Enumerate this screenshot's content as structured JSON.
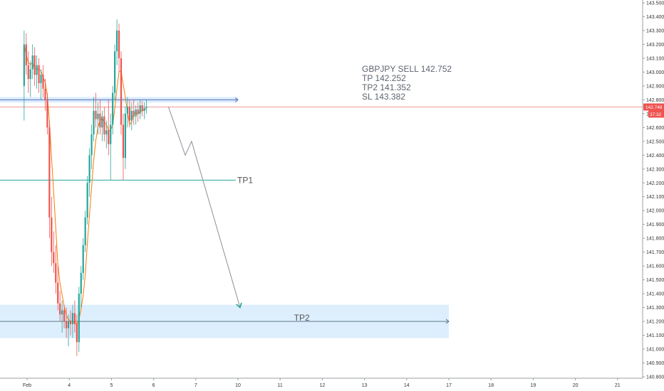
{
  "chart_data": {
    "type": "candlestick",
    "symbol_note": [
      "GBPJPY SELL 142.752",
      "TP 142.252",
      "TP2 141.352",
      "SL 143.382"
    ],
    "y_axis": {
      "min": 140.8,
      "max": 143.5,
      "ticks": [
        "143.500",
        "143.400",
        "143.300",
        "143.200",
        "143.100",
        "143.000",
        "142.900",
        "142.800",
        "142.700",
        "142.600",
        "142.500",
        "142.400",
        "142.300",
        "142.200",
        "142.100",
        "142.000",
        "141.900",
        "141.800",
        "141.700",
        "141.600",
        "141.500",
        "141.400",
        "141.300",
        "141.200",
        "141.100",
        "141.000",
        "140.900",
        "140.800"
      ]
    },
    "x_axis": {
      "ticks": [
        {
          "label": "Feb",
          "day": 3
        },
        {
          "label": "4",
          "day": 4
        },
        {
          "label": "5",
          "day": 5
        },
        {
          "label": "6",
          "day": 6
        },
        {
          "label": "7",
          "day": 7
        },
        {
          "label": "10",
          "day": 8
        },
        {
          "label": "11",
          "day": 9
        },
        {
          "label": "12",
          "day": 10
        },
        {
          "label": "13",
          "day": 11
        },
        {
          "label": "14",
          "day": 12
        },
        {
          "label": "17",
          "day": 13
        },
        {
          "label": "18",
          "day": 14
        },
        {
          "label": "19",
          "day": 15
        },
        {
          "label": "20",
          "day": 16
        },
        {
          "label": "21",
          "day": 17
        }
      ]
    },
    "current_price": {
      "value": "142.748",
      "timer": "37:32"
    },
    "colors": {
      "up": "#26a69a",
      "down": "#ef5350",
      "ma": "#f57c00",
      "resistance_band": "#bbdefb",
      "tp2_band": "#bbdefb",
      "projection": "#8a8f96",
      "level": "#26a69a",
      "price_line": "#ef9a9a"
    },
    "levels": {
      "resistance": {
        "value": 142.8,
        "band": [
          142.78,
          142.82
        ],
        "end_day": 8.0
      },
      "tp1": {
        "value": 142.22,
        "label": "TP1",
        "end_day": 7.95
      },
      "tp2": {
        "value": 141.2,
        "label": "TP2",
        "band": [
          141.08,
          141.32
        ],
        "end_day": 13.0
      }
    },
    "projection_path": [
      {
        "day": 6.35,
        "price": 142.75
      },
      {
        "day": 6.75,
        "price": 142.4
      },
      {
        "day": 6.9,
        "price": 142.5
      },
      {
        "day": 8.05,
        "price": 141.3
      }
    ],
    "candles": [
      {
        "day": 2.93,
        "o": 142.9,
        "h": 143.3,
        "l": 142.65,
        "c": 143.2
      },
      {
        "day": 2.98,
        "o": 143.2,
        "h": 143.28,
        "l": 142.98,
        "c": 143.05
      },
      {
        "day": 3.03,
        "o": 143.05,
        "h": 143.15,
        "l": 142.85,
        "c": 142.95
      },
      {
        "day": 3.08,
        "o": 142.95,
        "h": 143.08,
        "l": 142.82,
        "c": 143.02
      },
      {
        "day": 3.13,
        "o": 143.02,
        "h": 143.2,
        "l": 142.95,
        "c": 143.12
      },
      {
        "day": 3.18,
        "o": 143.12,
        "h": 143.18,
        "l": 142.9,
        "c": 142.98
      },
      {
        "day": 3.23,
        "o": 142.98,
        "h": 143.12,
        "l": 142.88,
        "c": 143.05
      },
      {
        "day": 3.28,
        "o": 143.05,
        "h": 143.1,
        "l": 142.85,
        "c": 142.92
      },
      {
        "day": 3.33,
        "o": 142.92,
        "h": 143.02,
        "l": 142.8,
        "c": 142.98
      },
      {
        "day": 3.38,
        "o": 142.98,
        "h": 143.05,
        "l": 142.82,
        "c": 142.88
      },
      {
        "day": 3.43,
        "o": 142.88,
        "h": 142.95,
        "l": 142.72,
        "c": 142.8
      },
      {
        "day": 3.48,
        "o": 142.8,
        "h": 142.85,
        "l": 142.55,
        "c": 142.6
      },
      {
        "day": 3.53,
        "o": 142.6,
        "h": 142.65,
        "l": 141.8,
        "c": 141.95
      },
      {
        "day": 3.58,
        "o": 141.95,
        "h": 142.1,
        "l": 141.6,
        "c": 141.7
      },
      {
        "day": 3.63,
        "o": 141.7,
        "h": 141.85,
        "l": 141.55,
        "c": 141.62
      },
      {
        "day": 3.68,
        "o": 141.62,
        "h": 141.75,
        "l": 141.4,
        "c": 141.48
      },
      {
        "day": 3.73,
        "o": 141.48,
        "h": 141.6,
        "l": 141.28,
        "c": 141.33
      },
      {
        "day": 3.78,
        "o": 141.33,
        "h": 141.42,
        "l": 141.2,
        "c": 141.25
      },
      {
        "day": 3.83,
        "o": 141.25,
        "h": 141.35,
        "l": 141.12,
        "c": 141.28
      },
      {
        "day": 3.88,
        "o": 141.28,
        "h": 141.32,
        "l": 141.15,
        "c": 141.2
      },
      {
        "day": 3.93,
        "o": 141.2,
        "h": 141.3,
        "l": 141.08,
        "c": 141.15
      },
      {
        "day": 3.98,
        "o": 141.15,
        "h": 141.25,
        "l": 141.02,
        "c": 141.2
      },
      {
        "day": 4.03,
        "o": 141.2,
        "h": 141.28,
        "l": 141.1,
        "c": 141.18
      },
      {
        "day": 4.08,
        "o": 141.18,
        "h": 141.32,
        "l": 141.08,
        "c": 141.26
      },
      {
        "day": 4.13,
        "o": 141.26,
        "h": 141.35,
        "l": 141.12,
        "c": 141.18
      },
      {
        "day": 4.18,
        "o": 141.18,
        "h": 141.25,
        "l": 140.95,
        "c": 141.05
      },
      {
        "day": 4.23,
        "o": 141.05,
        "h": 141.45,
        "l": 140.98,
        "c": 141.4
      },
      {
        "day": 4.28,
        "o": 141.4,
        "h": 141.6,
        "l": 141.3,
        "c": 141.55
      },
      {
        "day": 4.33,
        "o": 141.55,
        "h": 141.8,
        "l": 141.5,
        "c": 141.75
      },
      {
        "day": 4.38,
        "o": 141.75,
        "h": 142.0,
        "l": 141.7,
        "c": 141.95
      },
      {
        "day": 4.43,
        "o": 141.95,
        "h": 142.25,
        "l": 141.9,
        "c": 142.2
      },
      {
        "day": 4.48,
        "o": 142.2,
        "h": 142.45,
        "l": 142.1,
        "c": 142.4
      },
      {
        "day": 4.53,
        "o": 142.4,
        "h": 142.62,
        "l": 142.3,
        "c": 142.55
      },
      {
        "day": 4.58,
        "o": 142.55,
        "h": 142.82,
        "l": 142.5,
        "c": 142.72
      },
      {
        "day": 4.63,
        "o": 142.72,
        "h": 142.85,
        "l": 142.6,
        "c": 142.66
      },
      {
        "day": 4.68,
        "o": 142.66,
        "h": 142.78,
        "l": 142.55,
        "c": 142.7
      },
      {
        "day": 4.73,
        "o": 142.7,
        "h": 142.8,
        "l": 142.55,
        "c": 142.6
      },
      {
        "day": 4.78,
        "o": 142.6,
        "h": 142.72,
        "l": 142.5,
        "c": 142.68
      },
      {
        "day": 4.83,
        "o": 142.68,
        "h": 142.75,
        "l": 142.5,
        "c": 142.55
      },
      {
        "day": 4.88,
        "o": 142.55,
        "h": 142.65,
        "l": 142.45,
        "c": 142.58
      },
      {
        "day": 4.93,
        "o": 142.58,
        "h": 142.8,
        "l": 142.4,
        "c": 142.48
      },
      {
        "day": 4.98,
        "o": 142.48,
        "h": 142.7,
        "l": 142.22,
        "c": 142.62
      },
      {
        "day": 5.03,
        "o": 142.62,
        "h": 142.9,
        "l": 142.55,
        "c": 142.85
      },
      {
        "day": 5.08,
        "o": 142.85,
        "h": 143.2,
        "l": 142.8,
        "c": 143.15
      },
      {
        "day": 5.13,
        "o": 143.15,
        "h": 143.38,
        "l": 143.05,
        "c": 143.3
      },
      {
        "day": 5.18,
        "o": 143.3,
        "h": 143.35,
        "l": 143.0,
        "c": 143.1
      },
      {
        "day": 5.23,
        "o": 143.1,
        "h": 143.15,
        "l": 142.55,
        "c": 142.62
      },
      {
        "day": 5.28,
        "o": 142.62,
        "h": 142.7,
        "l": 142.22,
        "c": 142.38
      },
      {
        "day": 5.33,
        "o": 142.38,
        "h": 142.75,
        "l": 142.3,
        "c": 142.7
      },
      {
        "day": 5.38,
        "o": 142.7,
        "h": 142.82,
        "l": 142.6,
        "c": 142.75
      },
      {
        "day": 5.43,
        "o": 142.75,
        "h": 142.8,
        "l": 142.6,
        "c": 142.65
      },
      {
        "day": 5.48,
        "o": 142.65,
        "h": 142.78,
        "l": 142.58,
        "c": 142.72
      },
      {
        "day": 5.53,
        "o": 142.72,
        "h": 142.8,
        "l": 142.62,
        "c": 142.68
      },
      {
        "day": 5.58,
        "o": 142.68,
        "h": 142.76,
        "l": 142.62,
        "c": 142.73
      },
      {
        "day": 5.63,
        "o": 142.73,
        "h": 142.78,
        "l": 142.64,
        "c": 142.7
      },
      {
        "day": 5.68,
        "o": 142.7,
        "h": 142.8,
        "l": 142.66,
        "c": 142.76
      },
      {
        "day": 5.73,
        "o": 142.76,
        "h": 142.79,
        "l": 142.68,
        "c": 142.72
      },
      {
        "day": 5.78,
        "o": 142.72,
        "h": 142.78,
        "l": 142.66,
        "c": 142.74
      },
      {
        "day": 5.83,
        "o": 142.74,
        "h": 142.8,
        "l": 142.7,
        "c": 142.75
      }
    ]
  }
}
